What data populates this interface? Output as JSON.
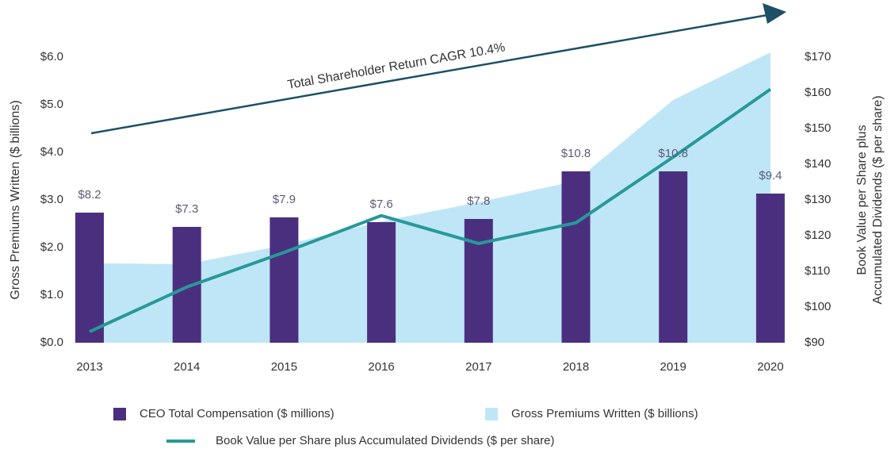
{
  "chart_data": {
    "type": "combo",
    "annotation": "Total Shareholder Return CAGR 10.4%",
    "ylabel": "Gross Premiums Written ($ billions)",
    "y2label": [
      "Book Value per Share plus",
      "Accumulated Dividends ($ per share)"
    ],
    "categories": [
      "2013",
      "2014",
      "2015",
      "2016",
      "2017",
      "2018",
      "2019",
      "2020"
    ],
    "series": [
      {
        "name": "CEO Total Compensation ($ millions)",
        "type": "bar",
        "axis": "y3",
        "color": "#4b2f7f",
        "values": [
          8.2,
          7.3,
          7.9,
          7.6,
          7.8,
          10.8,
          10.8,
          9.4
        ],
        "value_labels": [
          "$8.2",
          "$7.3",
          "$7.9",
          "$7.6",
          "$7.8",
          "$10.8",
          "$10.8",
          "$9.4"
        ]
      },
      {
        "name": "Gross Premiums Written ($ billions)",
        "type": "area",
        "axis": "y",
        "color": "#bfe6f7",
        "values": [
          1.67,
          1.65,
          2.05,
          2.55,
          2.95,
          3.4,
          5.1,
          6.1
        ]
      },
      {
        "name": "Book Value per Share plus Accumulated Dividends ($ per share)",
        "type": "line",
        "axis": "y2",
        "color": "#27999a",
        "values": [
          93.1,
          105.6,
          115.3,
          125.6,
          117.8,
          123.6,
          142,
          161
        ]
      }
    ],
    "ylim": [
      0,
      6
    ],
    "yticks": [
      {
        "value": 0,
        "label": "$0.0"
      },
      {
        "value": 1,
        "label": "$1.0"
      },
      {
        "value": 2,
        "label": "$2.0"
      },
      {
        "value": 3,
        "label": "$3.0"
      },
      {
        "value": 4,
        "label": "$4.0"
      },
      {
        "value": 5,
        "label": "$5.0"
      },
      {
        "value": 6,
        "label": "$6.0"
      }
    ],
    "y2lim": [
      90,
      170
    ],
    "y2ticks": [
      {
        "value": 90,
        "label": "$90"
      },
      {
        "value": 100,
        "label": "$100"
      },
      {
        "value": 110,
        "label": "$110"
      },
      {
        "value": 120,
        "label": "$120"
      },
      {
        "value": 130,
        "label": "$130"
      },
      {
        "value": 140,
        "label": "$140"
      },
      {
        "value": 150,
        "label": "$150"
      },
      {
        "value": 160,
        "label": "$160"
      },
      {
        "value": 170,
        "label": "$170"
      }
    ],
    "y3lim": [
      0,
      18
    ]
  }
}
